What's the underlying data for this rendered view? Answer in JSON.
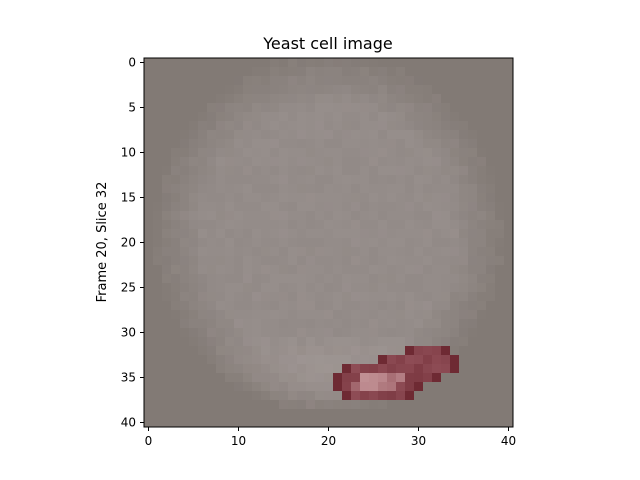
{
  "chart_data": {
    "type": "heatmap",
    "title": "Yeast cell image",
    "ylabel": "Frame 20, Slice 32",
    "xlabel": "",
    "x_ticks": [
      "0",
      "10",
      "20",
      "30",
      "40"
    ],
    "y_ticks": [
      "0",
      "5",
      "10",
      "15",
      "20",
      "25",
      "30",
      "35",
      "40"
    ],
    "xlim": [
      -0.5,
      40.5
    ],
    "ylim": [
      40.5,
      -0.5
    ],
    "grid": false,
    "image_size": [
      41,
      41
    ],
    "colors": {
      "background": "#827a75",
      "cell": "#948c89",
      "cell_light": "#aaa09e",
      "highlight_dark": "#6e2a33",
      "highlight_mid": "#8e4c55",
      "highlight_light": "#c08f93"
    },
    "cell_region": {
      "center": [
        20,
        19
      ],
      "radius_x": 19.5,
      "radius_y": 20
    },
    "highlight_region": {
      "rows": [
        {
          "y": 32,
          "x_start": 29,
          "x_end": 33
        },
        {
          "y": 33,
          "x_start": 26,
          "x_end": 34
        },
        {
          "y": 34,
          "x_start": 22,
          "x_end": 34
        },
        {
          "y": 35,
          "x_start": 21,
          "x_end": 32
        },
        {
          "y": 36,
          "x_start": 21,
          "x_end": 30
        },
        {
          "y": 37,
          "x_start": 22,
          "x_end": 29
        }
      ],
      "bright_rows": [
        {
          "y": 35,
          "x_start": 24,
          "x_end": 28
        },
        {
          "y": 36,
          "x_start": 23,
          "x_end": 27
        }
      ]
    }
  }
}
